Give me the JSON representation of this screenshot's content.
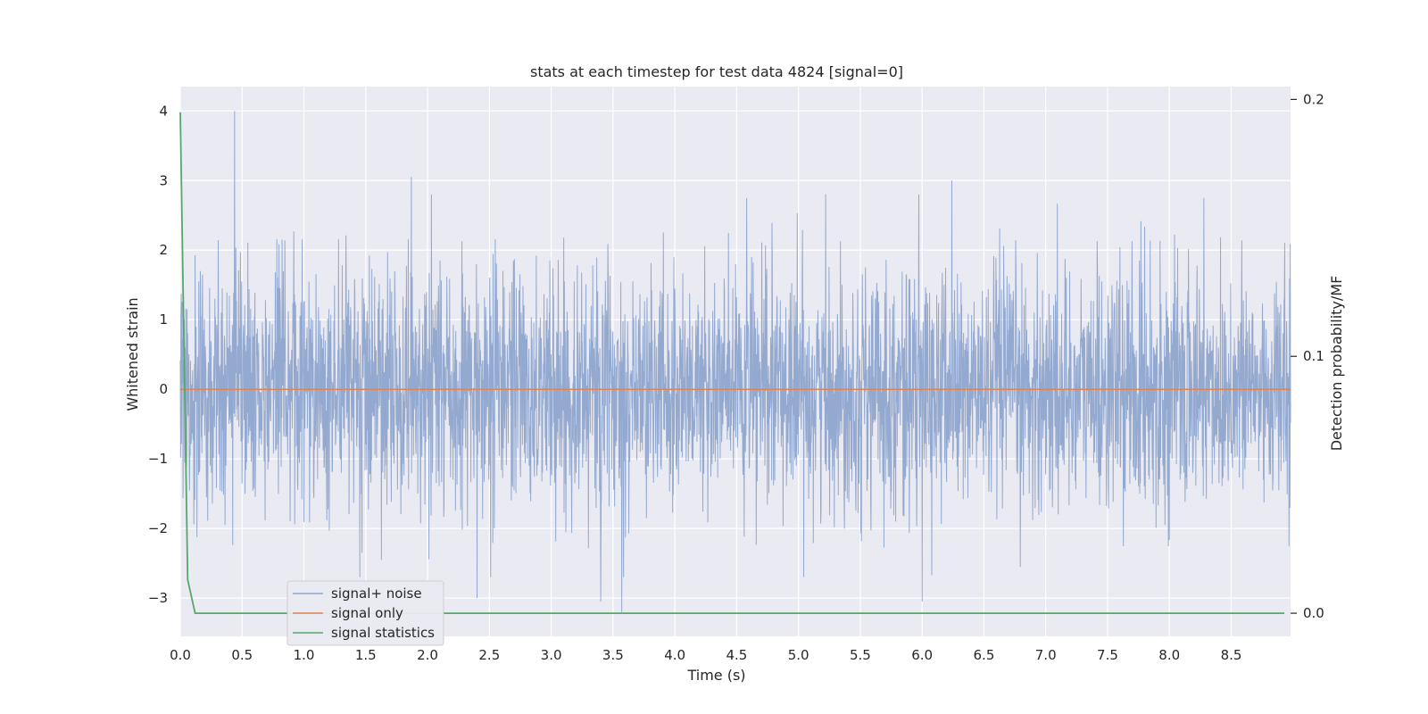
{
  "chart_data": {
    "type": "line",
    "title": "stats at each timestep for test data 4824 [signal=0]",
    "xlabel": "Time (s)",
    "ylabel": "Whitened strain",
    "y2label": "Detection probability/MF",
    "xlim": [
      0.0,
      8.98
    ],
    "ylim": [
      -3.55,
      4.35
    ],
    "y2lim": [
      -0.009,
      0.205
    ],
    "x_ticks": [
      "0.0",
      "0.5",
      "1.0",
      "1.5",
      "2.0",
      "2.5",
      "3.0",
      "3.5",
      "4.0",
      "4.5",
      "5.0",
      "5.5",
      "6.0",
      "6.5",
      "7.0",
      "7.5",
      "8.0",
      "8.5"
    ],
    "y_ticks": [
      "4",
      "3",
      "2",
      "1",
      "0",
      "−1",
      "−2",
      "−3"
    ],
    "y2_ticks": [
      "0.2",
      "0.1",
      "0.0"
    ],
    "grid": true,
    "legend_position": "lower-left",
    "colors": {
      "signal_noise": "#8fa5cd",
      "signal_only": "#dd8452",
      "signal_statistics": "#55a868",
      "background": "#eaeaf2",
      "grid": "#ffffff"
    },
    "series": [
      {
        "name": "signal+ noise",
        "axis": "left",
        "description_stats": {
          "noise_std": 0.85,
          "min": -3.2,
          "max": 4.0
        },
        "notable_peaks": [
          {
            "x": 0.44,
            "y": 4.0
          },
          {
            "x": 1.87,
            "y": 3.05
          },
          {
            "x": 6.24,
            "y": 3.0
          },
          {
            "x": 4.58,
            "y": 2.75
          },
          {
            "x": 8.28,
            "y": 2.75
          },
          {
            "x": 3.57,
            "y": -3.2
          },
          {
            "x": 2.4,
            "y": -3.0
          },
          {
            "x": 6.0,
            "y": -3.05
          },
          {
            "x": 3.4,
            "y": -3.05
          }
        ]
      },
      {
        "name": "signal only",
        "axis": "left",
        "x": [
          0.0,
          8.98
        ],
        "y": [
          0.0,
          0.0
        ]
      },
      {
        "name": "signal statistics",
        "axis": "right",
        "x": [
          0.0,
          0.06,
          0.12,
          0.5,
          1.0,
          2.0,
          3.0,
          4.0,
          5.0,
          6.0,
          7.0,
          8.0,
          8.93
        ],
        "y": [
          0.195,
          0.013,
          0.0,
          0.0,
          0.0,
          0.0,
          0.0,
          0.0,
          0.0,
          0.0,
          0.0,
          0.0,
          0.0
        ]
      }
    ]
  }
}
